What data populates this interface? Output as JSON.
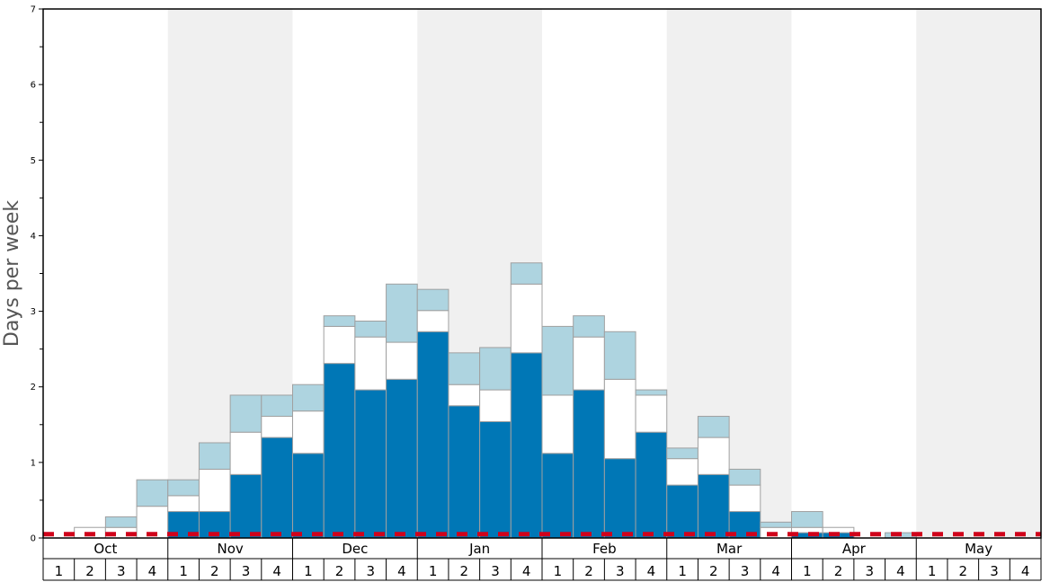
{
  "chart_data": {
    "type": "bar",
    "stacked": true,
    "ylabel": "Days per week",
    "ylim": [
      0,
      7
    ],
    "yticks": [
      "0",
      "1",
      "2",
      "3",
      "4",
      "5",
      "6",
      "7"
    ],
    "months": [
      "Oct",
      "Nov",
      "Dec",
      "Jan",
      "Feb",
      "Mar",
      "Apr",
      "May"
    ],
    "weeks": [
      "1",
      "2",
      "3",
      "4"
    ],
    "grid": false,
    "alternating_month_shading": true,
    "series": [
      {
        "color": "#0077b6",
        "values": [
          0,
          0,
          0,
          0,
          0.35,
          0.35,
          0.84,
          1.33,
          1.12,
          2.31,
          1.96,
          2.1,
          2.73,
          1.75,
          1.54,
          2.45,
          1.12,
          1.96,
          1.05,
          1.4,
          0.7,
          0.84,
          0.35,
          0,
          0.07,
          0.07,
          0,
          0,
          0,
          0,
          0,
          0
        ]
      },
      {
        "color": "#ffffff",
        "values": [
          0,
          0.14,
          0.14,
          0.42,
          0.21,
          0.56,
          0.56,
          0.28,
          0.56,
          0.49,
          0.7,
          0.49,
          0.28,
          0.28,
          0.42,
          0.91,
          0.77,
          0.7,
          1.05,
          0.49,
          0.35,
          0.49,
          0.35,
          0.14,
          0.07,
          0.07,
          0,
          0,
          0,
          0,
          0,
          0
        ]
      },
      {
        "color": "#aed4e0",
        "values": [
          0,
          0,
          0.14,
          0.35,
          0.21,
          0.35,
          0.49,
          0.28,
          0.35,
          0.14,
          0.21,
          0.77,
          0.28,
          0.42,
          0.56,
          0.28,
          0.91,
          0.28,
          0.63,
          0.07,
          0.14,
          0.28,
          0.21,
          0.07,
          0.21,
          0,
          0,
          0.07,
          0,
          0,
          0,
          0
        ]
      }
    ],
    "reference_line": {
      "value": 0.05,
      "color": "#d0021b",
      "style": "dashed"
    }
  }
}
